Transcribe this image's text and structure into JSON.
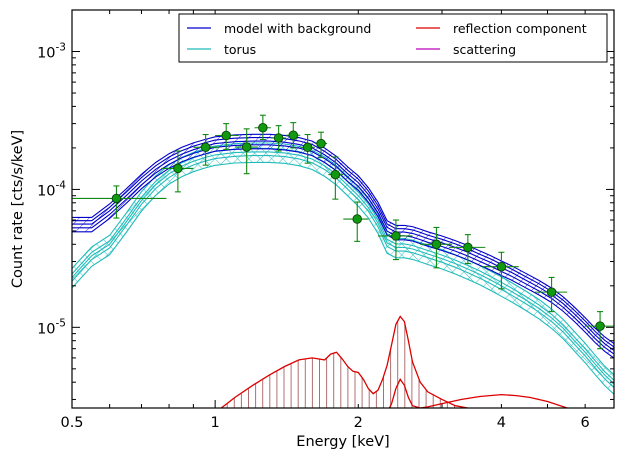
{
  "chart_data": {
    "type": "line",
    "title": "",
    "xlabel": "Energy [keV]",
    "ylabel": "Count rate [cts/s/keV]",
    "xscale": "log",
    "yscale": "log",
    "xlim": [
      0.5,
      6.9
    ],
    "ylim": [
      2.6e-06,
      0.002
    ],
    "x_tick_labels": [
      {
        "value": 0.5,
        "label": "0.5"
      },
      {
        "value": 1,
        "label": "1"
      },
      {
        "value": 2,
        "label": "2"
      },
      {
        "value": 4,
        "label": "4"
      },
      {
        "value": 6,
        "label": "6"
      }
    ],
    "y_tick_labels": [
      {
        "value": 1e-05,
        "mantissa": "10",
        "exponent": "-5"
      },
      {
        "value": 0.0001,
        "mantissa": "10",
        "exponent": "-4"
      },
      {
        "value": 0.001,
        "mantissa": "10",
        "exponent": "-3"
      }
    ],
    "legend": {
      "placement": "top-right",
      "columns": 2,
      "entries": [
        {
          "label": "model with background",
          "color": "#0000cc"
        },
        {
          "label": "reflection component",
          "color": "#dd0000"
        },
        {
          "label": "torus",
          "color": "#22bbbb"
        },
        {
          "label": "scattering",
          "color": "#bb00bb"
        }
      ]
    },
    "series": [
      {
        "name": "model with background",
        "color": "#0000cc",
        "x": [
          0.5,
          0.55,
          0.6,
          0.65,
          0.7,
          0.75,
          0.8,
          0.85,
          0.9,
          0.95,
          1.0,
          1.1,
          1.2,
          1.3,
          1.4,
          1.5,
          1.6,
          1.7,
          1.8,
          1.9,
          2.0,
          2.1,
          2.2,
          2.3,
          2.4,
          2.5,
          2.6,
          2.7,
          2.8,
          3.0,
          3.2,
          3.4,
          3.6,
          3.8,
          4.0,
          4.2,
          4.5,
          4.8,
          5.1,
          5.4,
          5.7,
          6.0,
          6.3,
          6.6,
          6.9
        ],
        "y": [
          5.6e-05,
          5.6e-05,
          7e-05,
          9e-05,
          0.000115,
          0.00014,
          0.000162,
          0.00018,
          0.000194,
          0.000205,
          0.000215,
          0.000222,
          0.000224,
          0.000224,
          0.00022,
          0.000212,
          0.0002,
          0.000178,
          0.000155,
          0.00013,
          0.000112,
          9.2e-05,
          7.2e-05,
          5.3e-05,
          4.9e-05,
          4.9e-05,
          4.8e-05,
          4.6e-05,
          4.4e-05,
          4.1e-05,
          3.8e-05,
          3.5e-05,
          3.2e-05,
          2.95e-05,
          2.7e-05,
          2.5e-05,
          2.2e-05,
          1.95e-05,
          1.72e-05,
          1.48e-05,
          1.25e-05,
          1.05e-05,
          8.8e-06,
          7.6e-06,
          6.8e-06
        ]
      },
      {
        "name": "torus",
        "color": "#22bbbb",
        "x": [
          0.5,
          0.55,
          0.6,
          0.65,
          0.7,
          0.75,
          0.8,
          0.85,
          0.9,
          0.95,
          1.0,
          1.1,
          1.2,
          1.3,
          1.4,
          1.5,
          1.6,
          1.7,
          1.8,
          1.9,
          2.0,
          2.1,
          2.2,
          2.3,
          2.4,
          2.5,
          2.6,
          2.7,
          2.8,
          3.0,
          3.2,
          3.4,
          3.6,
          3.8,
          4.0,
          4.2,
          4.5,
          4.8,
          5.1,
          5.4,
          5.7,
          6.0,
          6.3,
          6.6,
          6.9
        ],
        "y": [
          2.3e-05,
          3.3e-05,
          4e-05,
          5.8e-05,
          8.3e-05,
          0.000108,
          0.00013,
          0.000147,
          0.00016,
          0.00017,
          0.000178,
          0.000185,
          0.000187,
          0.000187,
          0.000184,
          0.000177,
          0.000166,
          0.000148,
          0.000128,
          0.000107,
          9e-05,
          7.4e-05,
          5.7e-05,
          4.1e-05,
          3.8e-05,
          3.8e-05,
          3.7e-05,
          3.55e-05,
          3.4e-05,
          3.15e-05,
          2.9e-05,
          2.65e-05,
          2.42e-05,
          2.2e-05,
          2e-05,
          1.82e-05,
          1.58e-05,
          1.37e-05,
          1.17e-05,
          9.8e-06,
          8e-06,
          6.6e-06,
          5.4e-06,
          4.5e-06,
          3.9e-06
        ]
      },
      {
        "name": "reflection component",
        "color": "#dd0000",
        "x": [
          1.0,
          1.1,
          1.2,
          1.3,
          1.4,
          1.5,
          1.6,
          1.7,
          1.75,
          1.8,
          1.85,
          1.9,
          1.95,
          2.0,
          2.05,
          2.1,
          2.15,
          2.2,
          2.25,
          2.3,
          2.35,
          2.4,
          2.45,
          2.5,
          2.55,
          2.6,
          2.7,
          2.8,
          3.0,
          3.2,
          3.5,
          3.8,
          4.0,
          4.3,
          4.6,
          5.0,
          5.5
        ],
        "y": [
          2.4e-06,
          3.1e-06,
          3.8e-06,
          4.5e-06,
          5.2e-06,
          5.8e-06,
          6e-06,
          5.8e-06,
          6.4e-06,
          6.6e-06,
          5.9e-06,
          5.2e-06,
          4.8e-06,
          4.7e-06,
          4.2e-06,
          3.6e-06,
          3.3e-06,
          3.5e-06,
          4.2e-06,
          5.3e-06,
          7.5e-06,
          1.05e-05,
          1.2e-05,
          1.1e-05,
          8e-06,
          5.6e-06,
          4e-06,
          3.4e-06,
          3e-06,
          2.7e-06,
          2.55e-06,
          2.5e-06,
          2.5e-06,
          2.5e-06,
          2.45e-06,
          2.3e-06,
          2.1e-06
        ]
      },
      {
        "name": "",
        "color": "#dd0000",
        "x": [
          2.3,
          2.35,
          2.4,
          2.45,
          2.5,
          2.55,
          2.6,
          2.7,
          2.8,
          3.0,
          3.3,
          3.6,
          4.0,
          4.3,
          4.6,
          5.0,
          5.5
        ],
        "y": [
          2.4e-06,
          2.8e-06,
          3.6e-06,
          4.2e-06,
          3.8e-06,
          3.1e-06,
          2.7e-06,
          2.6e-06,
          2.65e-06,
          2.8e-06,
          3e-06,
          3.15e-06,
          3.25e-06,
          3.2e-06,
          3.1e-06,
          2.9e-06,
          2.6e-06
        ]
      }
    ],
    "data_points": {
      "color": "#118811",
      "points": [
        {
          "x": 0.62,
          "y": 8.6e-05,
          "xlo": 0.5,
          "xhi": 0.79,
          "ylo": 6.2e-05,
          "yhi": 0.000106
        },
        {
          "x": 0.835,
          "y": 0.000142,
          "xlo": 0.77,
          "xhi": 0.9,
          "ylo": 9.6e-05,
          "yhi": 0.00019
        },
        {
          "x": 0.955,
          "y": 0.000202,
          "xlo": 0.9,
          "xhi": 1.02,
          "ylo": 0.00015,
          "yhi": 0.00025
        },
        {
          "x": 1.055,
          "y": 0.000246,
          "xlo": 1.0,
          "xhi": 1.12,
          "ylo": 0.000195,
          "yhi": 0.0003
        },
        {
          "x": 1.165,
          "y": 0.000203,
          "xlo": 1.1,
          "xhi": 1.23,
          "ylo": 0.00013,
          "yhi": 0.000275
        },
        {
          "x": 1.26,
          "y": 0.00028,
          "xlo": 1.21,
          "xhi": 1.31,
          "ylo": 0.00023,
          "yhi": 0.000345
        },
        {
          "x": 1.36,
          "y": 0.000236,
          "xlo": 1.31,
          "xhi": 1.41,
          "ylo": 0.00019,
          "yhi": 0.00029
        },
        {
          "x": 1.46,
          "y": 0.000247,
          "xlo": 1.41,
          "xhi": 1.51,
          "ylo": 0.0002,
          "yhi": 0.000305
        },
        {
          "x": 1.565,
          "y": 0.000202,
          "xlo": 1.51,
          "xhi": 1.62,
          "ylo": 0.000155,
          "yhi": 0.00025
        },
        {
          "x": 1.67,
          "y": 0.000215,
          "xlo": 1.62,
          "xhi": 1.72,
          "ylo": 0.00017,
          "yhi": 0.00026
        },
        {
          "x": 1.79,
          "y": 0.000128,
          "xlo": 1.73,
          "xhi": 1.86,
          "ylo": 8.5e-05,
          "yhi": 0.000172
        },
        {
          "x": 1.99,
          "y": 6.1e-05,
          "xlo": 1.86,
          "xhi": 2.1,
          "ylo": 4.2e-05,
          "yhi": 8.1e-05
        },
        {
          "x": 2.4,
          "y": 4.6e-05,
          "xlo": 2.2,
          "xhi": 2.6,
          "ylo": 3.1e-05,
          "yhi": 6e-05
        },
        {
          "x": 2.92,
          "y": 4e-05,
          "xlo": 2.7,
          "xhi": 3.15,
          "ylo": 2.7e-05,
          "yhi": 5.3e-05
        },
        {
          "x": 3.4,
          "y": 3.8e-05,
          "xlo": 3.1,
          "xhi": 3.7,
          "ylo": 2.9e-05,
          "yhi": 4.7e-05
        },
        {
          "x": 4.0,
          "y": 2.75e-05,
          "xlo": 3.65,
          "xhi": 4.35,
          "ylo": 1.9e-05,
          "yhi": 3.5e-05
        },
        {
          "x": 5.1,
          "y": 1.8e-05,
          "xlo": 4.7,
          "xhi": 5.5,
          "ylo": 1.3e-05,
          "yhi": 2.3e-05
        },
        {
          "x": 6.45,
          "y": 1.02e-05,
          "xlo": 6.0,
          "xhi": 6.9,
          "ylo": 7e-06,
          "yhi": 1.3e-05
        }
      ]
    }
  }
}
